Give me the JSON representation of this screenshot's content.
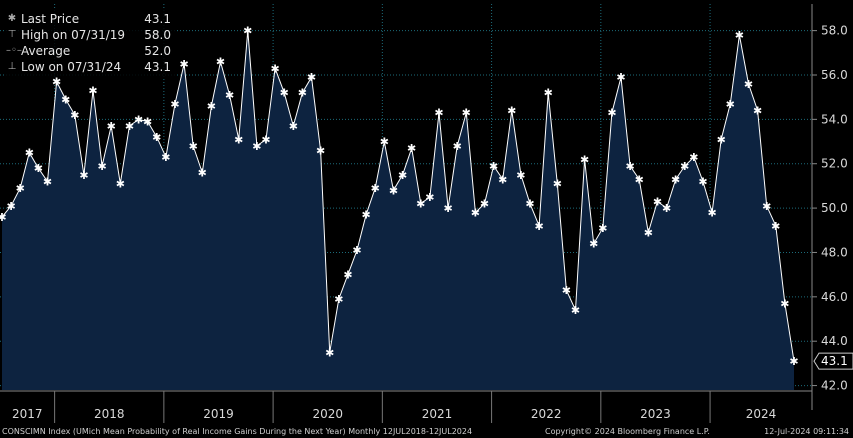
{
  "legend": [
    {
      "icon": "asterisk-icon",
      "symbol": "✱",
      "label": "Last Price",
      "value": "43.1"
    },
    {
      "icon": "high-marker-icon",
      "symbol": "⊤",
      "label": "High on 07/31/19",
      "value": "58.0"
    },
    {
      "icon": "average-marker-icon",
      "symbol": "–◦–",
      "label": "Average",
      "value": "52.0"
    },
    {
      "icon": "low-marker-icon",
      "symbol": "⊥",
      "label": "Low on 07/31/24",
      "value": "43.1"
    }
  ],
  "last_price_tag": "43.1",
  "footer": {
    "left": "CONSCIMN Index (UMich Mean Probability of Real Income Gains During the Next Year)  Monthly 12JUL2018-12JUL2024",
    "center": "Copyright© 2024 Bloomberg Finance L.P.",
    "right": "12-Jul-2024 09:11:34"
  },
  "colors": {
    "area": "#0d2340",
    "line": "#ffffff",
    "grid": "#1c6b7a",
    "background": "#000000"
  },
  "chart_data": {
    "type": "area",
    "ylim": [
      41.8,
      59.2
    ],
    "yticks": [
      "42.0",
      "44.0",
      "46.0",
      "48.0",
      "50.0",
      "52.0",
      "54.0",
      "56.0",
      "58.0"
    ],
    "ytick_values": [
      42,
      44,
      46,
      48,
      50,
      52,
      54,
      56,
      58
    ],
    "xlabels": [
      "2017",
      "2018",
      "2019",
      "2020",
      "2021",
      "2022",
      "2023",
      "2024"
    ],
    "grid": true,
    "values": [
      49.6,
      50.1,
      50.9,
      52.5,
      51.8,
      51.2,
      55.7,
      54.9,
      54.2,
      51.5,
      55.3,
      51.9,
      53.7,
      51.1,
      53.7,
      54.0,
      53.9,
      53.2,
      52.3,
      54.7,
      56.5,
      52.8,
      51.6,
      54.6,
      56.6,
      55.1,
      53.1,
      58.0,
      52.8,
      53.1,
      56.3,
      55.2,
      53.7,
      55.2,
      55.9,
      52.6,
      43.5,
      45.9,
      47.0,
      48.1,
      49.7,
      50.9,
      53.0,
      50.8,
      51.5,
      52.7,
      50.2,
      50.5,
      54.3,
      50.0,
      52.8,
      54.3,
      49.8,
      50.2,
      51.9,
      51.3,
      54.4,
      51.5,
      50.2,
      49.2,
      55.2,
      51.1,
      46.3,
      45.4,
      52.2,
      48.4,
      49.1,
      54.3,
      55.9,
      51.9,
      51.3,
      48.9,
      50.3,
      50.0,
      51.3,
      51.9,
      52.3,
      51.2,
      49.8,
      53.1,
      54.7,
      57.8,
      55.6,
      54.4,
      50.1,
      49.2,
      45.7,
      43.1
    ]
  }
}
